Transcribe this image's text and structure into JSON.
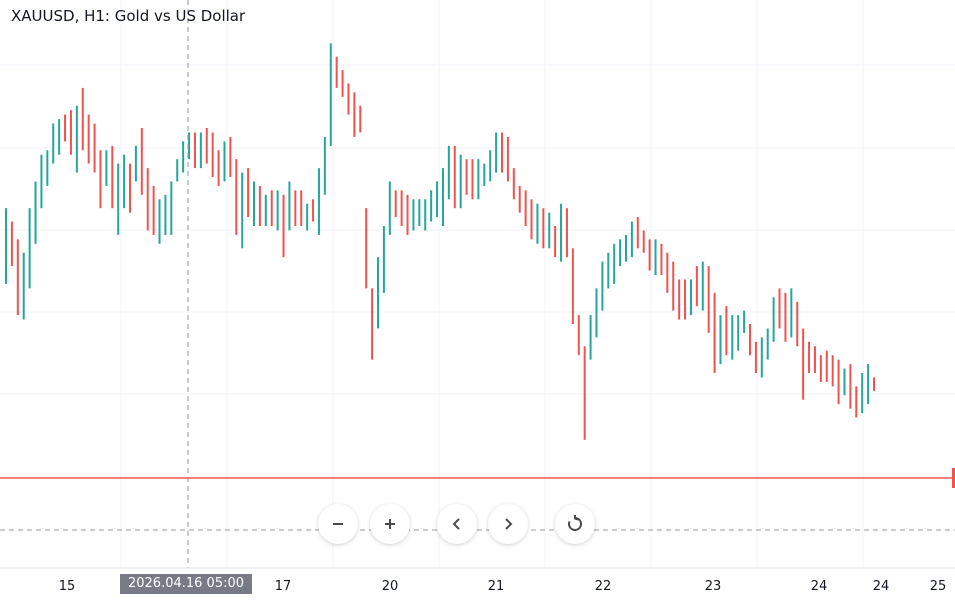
{
  "header": {
    "title": "XAUUSD, H1: Gold vs US Dollar"
  },
  "crosshair": {
    "time_label": "2026.04.16 05:00"
  },
  "toolbar": {
    "buttons": [
      {
        "name": "zoom-out",
        "icon": "minus-icon"
      },
      {
        "name": "zoom-in",
        "icon": "plus-icon"
      },
      {
        "name": "scroll-left",
        "icon": "chevron-left-icon"
      },
      {
        "name": "scroll-right",
        "icon": "chevron-right-icon"
      },
      {
        "name": "reset",
        "icon": "reset-icon"
      }
    ]
  },
  "colors": {
    "up": "#26a69a",
    "down": "#ef5350",
    "price_line": "#ef5350",
    "grid": "#f0f3fa",
    "axis_text": "#131722"
  },
  "chart_data": {
    "type": "ohlc",
    "title": "XAUUSD, H1: Gold vs US Dollar",
    "x_tick_labels": [
      "15",
      "17",
      "20",
      "21",
      "22",
      "23",
      "24",
      "24",
      "25"
    ],
    "grid": true,
    "current_price_line": true,
    "bars": [
      {
        "o": 53,
        "h": 70,
        "l": 55,
        "c": 58
      },
      {
        "o": 60,
        "h": 67,
        "l": 57,
        "c": 58
      },
      {
        "o": 55,
        "h": 63,
        "l": 46,
        "c": 50
      },
      {
        "o": 49,
        "h": 60,
        "l": 45,
        "c": 55
      },
      {
        "o": 56,
        "h": 70,
        "l": 52,
        "c": 68
      },
      {
        "o": 68,
        "h": 76,
        "l": 62,
        "c": 74
      },
      {
        "o": 74,
        "h": 82,
        "l": 70,
        "c": 80
      },
      {
        "o": 80,
        "h": 83,
        "l": 75,
        "c": 81
      },
      {
        "o": 80,
        "h": 89,
        "l": 80,
        "c": 88
      },
      {
        "o": 88,
        "h": 90,
        "l": 82,
        "c": 88
      },
      {
        "o": 88,
        "h": 91,
        "l": 85,
        "c": 86
      },
      {
        "o": 87,
        "h": 92,
        "l": 82,
        "c": 84
      },
      {
        "o": 83,
        "h": 93,
        "l": 78,
        "c": 88
      },
      {
        "o": 90,
        "h": 97,
        "l": 83,
        "c": 86
      },
      {
        "o": 86,
        "h": 91,
        "l": 80,
        "c": 82
      },
      {
        "o": 84,
        "h": 89,
        "l": 78,
        "c": 81
      },
      {
        "o": 80,
        "h": 83,
        "l": 70,
        "c": 76
      },
      {
        "o": 77,
        "h": 83,
        "l": 75,
        "c": 80
      },
      {
        "o": 81,
        "h": 84,
        "l": 70,
        "c": 72
      },
      {
        "o": 72,
        "h": 80,
        "l": 64,
        "c": 74
      },
      {
        "o": 74,
        "h": 82,
        "l": 70,
        "c": 78
      },
      {
        "o": 77,
        "h": 80,
        "l": 69,
        "c": 76
      },
      {
        "o": 76,
        "h": 84,
        "l": 76,
        "c": 82
      },
      {
        "o": 83,
        "h": 88,
        "l": 73,
        "c": 76
      },
      {
        "o": 75,
        "h": 79,
        "l": 65,
        "c": 71
      },
      {
        "o": 71,
        "h": 75,
        "l": 64,
        "c": 66
      },
      {
        "o": 66,
        "h": 72,
        "l": 62,
        "c": 66
      },
      {
        "o": 66,
        "h": 73,
        "l": 64,
        "c": 70
      },
      {
        "o": 68,
        "h": 75,
        "l": 64,
        "c": 76
      },
      {
        "o": 76,
        "h": 81,
        "l": 76,
        "c": 78
      },
      {
        "o": 80,
        "h": 85,
        "l": 78,
        "c": 82
      },
      {
        "o": 82,
        "h": 87,
        "l": 81,
        "c": 85
      },
      {
        "o": 84,
        "h": 87,
        "l": 79,
        "c": 81
      },
      {
        "o": 81,
        "h": 87,
        "l": 79,
        "c": 86
      },
      {
        "o": 86,
        "h": 88,
        "l": 80,
        "c": 82
      },
      {
        "o": 82,
        "h": 87,
        "l": 77,
        "c": 79
      },
      {
        "o": 79,
        "h": 83,
        "l": 75,
        "c": 76
      },
      {
        "o": 80,
        "h": 85,
        "l": 76,
        "c": 82
      },
      {
        "o": 84,
        "h": 86,
        "l": 77,
        "c": 80
      },
      {
        "o": 80,
        "h": 81,
        "l": 64,
        "c": 65
      },
      {
        "o": 66,
        "h": 78,
        "l": 61,
        "c": 72
      },
      {
        "o": 72,
        "h": 79,
        "l": 68,
        "c": 70
      },
      {
        "o": 70,
        "h": 76,
        "l": 66,
        "c": 71
      },
      {
        "o": 72,
        "h": 75,
        "l": 66,
        "c": 67
      },
      {
        "o": 66,
        "h": 73,
        "l": 66,
        "c": 71
      },
      {
        "o": 71,
        "h": 74,
        "l": 66,
        "c": 70
      },
      {
        "o": 69,
        "h": 74,
        "l": 65,
        "c": 71
      },
      {
        "o": 71,
        "h": 73,
        "l": 59,
        "c": 67
      },
      {
        "o": 67,
        "h": 76,
        "l": 65,
        "c": 70
      },
      {
        "o": 70,
        "h": 74,
        "l": 66,
        "c": 69
      },
      {
        "o": 69,
        "h": 74,
        "l": 66,
        "c": 67
      },
      {
        "o": 67,
        "h": 71,
        "l": 65,
        "c": 69
      },
      {
        "o": 68,
        "h": 72,
        "l": 67,
        "c": 67
      },
      {
        "o": 67,
        "h": 79,
        "l": 64,
        "c": 75
      },
      {
        "o": 73,
        "h": 86,
        "l": 74,
        "c": 85
      },
      {
        "o": 87,
        "h": 107,
        "l": 84,
        "c": 103
      },
      {
        "o": 104,
        "h": 103,
        "l": 97,
        "c": 101
      },
      {
        "o": 101,
        "h": 101,
        "l": 95,
        "c": 98
      },
      {
        "o": 98,
        "h": 98,
        "l": 91,
        "c": 95
      },
      {
        "o": 96,
        "h": 96,
        "l": 86,
        "c": 93
      },
      {
        "o": 93,
        "h": 92,
        "l": 87,
        "c": 91
      },
      {
        "o": 70,
        "h": 68,
        "l": 52,
        "c": 55
      },
      {
        "o": 52,
        "h": 52,
        "l": 36,
        "c": 41
      },
      {
        "o": 45,
        "h": 59,
        "l": 43,
        "c": 52
      },
      {
        "o": 51,
        "h": 66,
        "l": 51,
        "c": 64
      },
      {
        "o": 66,
        "h": 76,
        "l": 64,
        "c": 74
      },
      {
        "o": 74,
        "h": 73,
        "l": 68,
        "c": 70
      },
      {
        "o": 71,
        "h": 74,
        "l": 66,
        "c": 69
      },
      {
        "o": 69,
        "h": 73,
        "l": 64,
        "c": 67
      },
      {
        "o": 66,
        "h": 72,
        "l": 65,
        "c": 68
      },
      {
        "o": 68,
        "h": 72,
        "l": 66,
        "c": 70
      },
      {
        "o": 69,
        "h": 72,
        "l": 65,
        "c": 70
      },
      {
        "o": 70,
        "h": 74,
        "l": 67,
        "c": 72
      },
      {
        "o": 72,
        "h": 76,
        "l": 68,
        "c": 72
      },
      {
        "o": 72,
        "h": 79,
        "l": 66,
        "c": 75
      },
      {
        "o": 75,
        "h": 84,
        "l": 72,
        "c": 80
      },
      {
        "o": 80,
        "h": 84,
        "l": 70,
        "c": 73
      },
      {
        "o": 73,
        "h": 82,
        "l": 70,
        "c": 78
      },
      {
        "o": 78,
        "h": 81,
        "l": 73,
        "c": 76
      },
      {
        "o": 76,
        "h": 81,
        "l": 72,
        "c": 75
      },
      {
        "o": 75,
        "h": 81,
        "l": 72,
        "c": 77
      },
      {
        "o": 77,
        "h": 80,
        "l": 75,
        "c": 78
      },
      {
        "o": 78,
        "h": 83,
        "l": 76,
        "c": 80
      },
      {
        "o": 80,
        "h": 87,
        "l": 78,
        "c": 83
      },
      {
        "o": 84,
        "h": 87,
        "l": 78,
        "c": 80
      },
      {
        "o": 81,
        "h": 86,
        "l": 76,
        "c": 78
      },
      {
        "o": 78,
        "h": 79,
        "l": 72,
        "c": 75
      },
      {
        "o": 75,
        "h": 75,
        "l": 69,
        "c": 72
      },
      {
        "o": 72,
        "h": 74,
        "l": 66,
        "c": 70
      },
      {
        "o": 70,
        "h": 72,
        "l": 63,
        "c": 66
      },
      {
        "o": 66,
        "h": 71,
        "l": 62,
        "c": 68
      },
      {
        "o": 68,
        "h": 70,
        "l": 61,
        "c": 63
      },
      {
        "o": 62,
        "h": 69,
        "l": 61,
        "c": 65
      },
      {
        "o": 64,
        "h": 66,
        "l": 59,
        "c": 60
      },
      {
        "o": 62,
        "h": 71,
        "l": 58,
        "c": 69
      },
      {
        "o": 69,
        "h": 70,
        "l": 59,
        "c": 60
      },
      {
        "o": 61,
        "h": 60,
        "l": 44,
        "c": 48
      },
      {
        "o": 46,
        "h": 43,
        "l": 37,
        "c": 41
      },
      {
        "o": 39,
        "h": 39,
        "l": 18,
        "c": 36
      },
      {
        "o": 36,
        "h": 46,
        "l": 38,
        "c": 45
      },
      {
        "o": 45,
        "h": 52,
        "l": 41,
        "c": 50
      },
      {
        "o": 50,
        "h": 58,
        "l": 47,
        "c": 55
      },
      {
        "o": 53,
        "h": 60,
        "l": 52,
        "c": 59
      },
      {
        "o": 58,
        "h": 62,
        "l": 53,
        "c": 60
      },
      {
        "o": 60,
        "h": 63,
        "l": 57,
        "c": 61
      },
      {
        "o": 61,
        "h": 64,
        "l": 58,
        "c": 63
      },
      {
        "o": 62,
        "h": 67,
        "l": 59,
        "c": 64
      },
      {
        "o": 64,
        "h": 68,
        "l": 61,
        "c": 63
      },
      {
        "o": 64,
        "h": 65,
        "l": 60,
        "c": 62
      },
      {
        "o": 62,
        "h": 63,
        "l": 56,
        "c": 58
      },
      {
        "o": 58,
        "h": 63,
        "l": 55,
        "c": 62
      },
      {
        "o": 62,
        "h": 62,
        "l": 55,
        "c": 58
      },
      {
        "o": 58,
        "h": 60,
        "l": 51,
        "c": 54
      },
      {
        "o": 55,
        "h": 58,
        "l": 47,
        "c": 50
      },
      {
        "o": 51,
        "h": 54,
        "l": 45,
        "c": 50
      },
      {
        "o": 50,
        "h": 54,
        "l": 45,
        "c": 48
      },
      {
        "o": 47,
        "h": 54,
        "l": 46,
        "c": 53
      },
      {
        "o": 52,
        "h": 57,
        "l": 48,
        "c": 50
      },
      {
        "o": 51,
        "h": 58,
        "l": 47,
        "c": 51
      },
      {
        "o": 51,
        "h": 57,
        "l": 42,
        "c": 50
      },
      {
        "o": 48,
        "h": 51,
        "l": 33,
        "c": 36
      },
      {
        "o": 36,
        "h": 46,
        "l": 35,
        "c": 43
      },
      {
        "o": 43,
        "h": 48,
        "l": 37,
        "c": 39
      },
      {
        "o": 40,
        "h": 46,
        "l": 36,
        "c": 41
      },
      {
        "o": 40,
        "h": 46,
        "l": 38,
        "c": 43
      },
      {
        "o": 43,
        "h": 47,
        "l": 42,
        "c": 44
      },
      {
        "o": 43,
        "h": 44,
        "l": 37,
        "c": 38
      },
      {
        "o": 38,
        "h": 40,
        "l": 33,
        "c": 36
      },
      {
        "o": 35,
        "h": 41,
        "l": 32,
        "c": 38
      },
      {
        "o": 38,
        "h": 43,
        "l": 36,
        "c": 41
      },
      {
        "o": 42,
        "h": 50,
        "l": 40,
        "c": 49
      },
      {
        "o": 50,
        "h": 52,
        "l": 43,
        "c": 48
      },
      {
        "o": 49,
        "h": 51,
        "l": 40,
        "c": 45
      },
      {
        "o": 45,
        "h": 52,
        "l": 41,
        "c": 46
      },
      {
        "o": 46,
        "h": 49,
        "l": 39,
        "c": 43
      },
      {
        "o": 42,
        "h": 43,
        "l": 27,
        "c": 39
      },
      {
        "o": 38,
        "h": 40,
        "l": 33,
        "c": 36
      },
      {
        "o": 37,
        "h": 39,
        "l": 33,
        "c": 35
      },
      {
        "o": 35,
        "h": 37,
        "l": 31,
        "c": 33
      },
      {
        "o": 34,
        "h": 38,
        "l": 31,
        "c": 33
      },
      {
        "o": 33,
        "h": 37,
        "l": 30,
        "c": 32
      },
      {
        "o": 31,
        "h": 36,
        "l": 26,
        "c": 29
      },
      {
        "o": 28,
        "h": 34,
        "l": 28,
        "c": 33
      },
      {
        "o": 31,
        "h": 35,
        "l": 25,
        "c": 29
      },
      {
        "o": 29,
        "h": 30,
        "l": 23,
        "c": 27
      },
      {
        "o": 27,
        "h": 33,
        "l": 24,
        "c": 29
      },
      {
        "o": 30,
        "h": 35,
        "l": 26,
        "c": 32
      },
      {
        "o": 31,
        "h": 32,
        "l": 29,
        "c": 30
      }
    ]
  }
}
